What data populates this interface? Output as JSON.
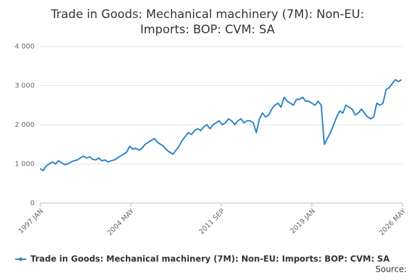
{
  "chart_data": {
    "type": "line",
    "title": [
      "Trade in Goods: Mechanical machinery (7M): Non-EU:",
      "Imports: BOP: CVM: SA"
    ],
    "source": "Source:",
    "x": [
      1997,
      1997.25,
      1997.5,
      1997.75,
      1998,
      1998.25,
      1998.5,
      1998.75,
      1999,
      1999.25,
      1999.5,
      1999.75,
      2000,
      2000.25,
      2000.5,
      2000.75,
      2001,
      2001.25,
      2001.5,
      2001.75,
      2002,
      2002.25,
      2002.5,
      2002.75,
      2003,
      2003.25,
      2003.5,
      2003.75,
      2004,
      2004.25,
      2004.5,
      2004.75,
      2005,
      2005.25,
      2005.5,
      2005.75,
      2006,
      2006.25,
      2006.5,
      2006.75,
      2007,
      2007.25,
      2007.5,
      2007.75,
      2008,
      2008.25,
      2008.5,
      2008.75,
      2009,
      2009.25,
      2009.5,
      2009.75,
      2010,
      2010.25,
      2010.5,
      2010.75,
      2011,
      2011.25,
      2011.5,
      2011.75,
      2012,
      2012.25,
      2012.5,
      2012.75,
      2013,
      2013.25,
      2013.5,
      2013.75,
      2014,
      2014.25,
      2014.5,
      2014.75,
      2015,
      2015.25,
      2015.5,
      2015.75,
      2016,
      2016.25,
      2016.5,
      2016.75,
      2017,
      2017.25,
      2017.5,
      2017.75,
      2018,
      2018.25,
      2018.5,
      2018.75,
      2019,
      2019.25,
      2019.5,
      2019.75,
      2020,
      2020.25,
      2020.5,
      2020.75,
      2021,
      2021.25,
      2021.5,
      2021.75,
      2022,
      2022.25,
      2022.5,
      2022.75,
      2023,
      2023.25,
      2023.5,
      2023.75,
      2024,
      2024.25,
      2024.5,
      2024.75,
      2025,
      2025.25,
      2025.5,
      2025.75,
      2026,
      2026.25
    ],
    "series": [
      {
        "name": "Trade in Goods: Mechanical machinery (7M): Non-EU: Imports: BOP: CVM: SA",
        "color": "#2b83c4",
        "values": [
          880,
          830,
          950,
          1000,
          1050,
          1000,
          1080,
          1030,
          980,
          1000,
          1050,
          1080,
          1100,
          1150,
          1200,
          1150,
          1180,
          1120,
          1100,
          1150,
          1080,
          1100,
          1050,
          1080,
          1100,
          1150,
          1200,
          1250,
          1300,
          1450,
          1380,
          1400,
          1350,
          1400,
          1500,
          1550,
          1600,
          1650,
          1550,
          1500,
          1450,
          1350,
          1300,
          1250,
          1350,
          1450,
          1600,
          1700,
          1800,
          1750,
          1850,
          1900,
          1850,
          1950,
          2000,
          1900,
          2000,
          2050,
          2100,
          2000,
          2050,
          2150,
          2100,
          2000,
          2100,
          2150,
          2050,
          2100,
          2100,
          2050,
          1800,
          2150,
          2300,
          2200,
          2250,
          2400,
          2500,
          2550,
          2450,
          2700,
          2600,
          2550,
          2500,
          2650,
          2650,
          2700,
          2600,
          2600,
          2550,
          2500,
          2600,
          2500,
          1500,
          1650,
          1800,
          2000,
          2200,
          2350,
          2300,
          2500,
          2450,
          2400,
          2250,
          2300,
          2400,
          2300,
          2200,
          2150,
          2200,
          2550,
          2500,
          2550,
          2900,
          2950,
          3050,
          3150,
          3100,
          3150
        ]
      }
    ],
    "xlim": [
      1997,
      2026.333
    ],
    "xticks": [
      {
        "value": 1997,
        "label": "1997 JAN"
      },
      {
        "value": 2004.333,
        "label": "2004 MAY"
      },
      {
        "value": 2011.667,
        "label": "2011 SEP"
      },
      {
        "value": 2019,
        "label": "2019 JAN"
      },
      {
        "value": 2026.333,
        "label": "2026 MAY"
      }
    ],
    "ylim": [
      0,
      4000
    ],
    "yticks": [
      0,
      {
        "value": 1000,
        "label": "1 000"
      },
      {
        "value": 2000,
        "label": "2 000"
      },
      {
        "value": 3000,
        "label": "3 000"
      },
      {
        "value": 4000,
        "label": "4 000"
      }
    ],
    "grid": true
  }
}
